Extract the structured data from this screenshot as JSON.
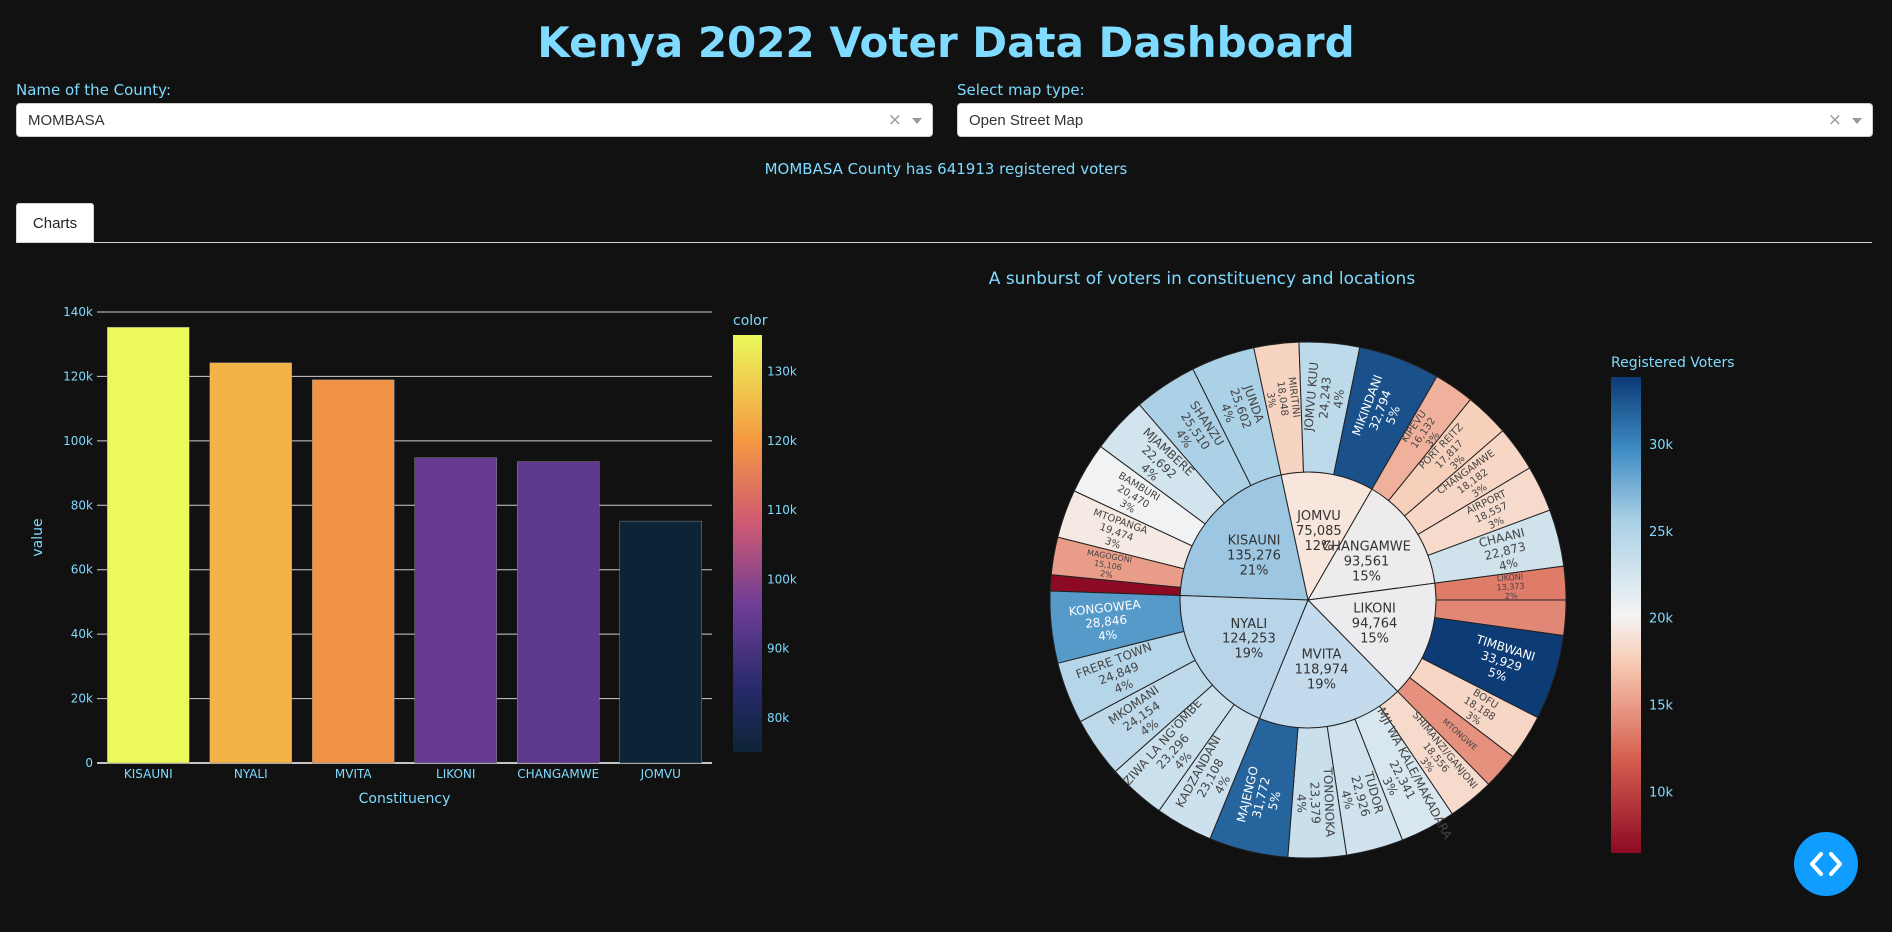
{
  "page": {
    "title": "Kenya 2022 Voter Data Dashboard"
  },
  "controls": {
    "county_label": "Name of the County:",
    "county_value": "MOMBASA",
    "map_label": "Select map type:",
    "map_value": "Open Street Map",
    "clear_glyph": "×"
  },
  "summary": "MOMBASA County has 641913 registered voters",
  "tabs": [
    {
      "label": "Charts"
    }
  ],
  "colors": {
    "accent": "#7fdbff",
    "background": "#111111",
    "fab": "#119dff"
  },
  "icons": {
    "fab": "code-icon"
  },
  "chart_data": [
    {
      "type": "bar",
      "xlabel": "Constituency",
      "ylabel": "value",
      "categories": [
        "KISAUNI",
        "NYALI",
        "MVITA",
        "LIKONI",
        "CHANGAMWE",
        "JOMVU"
      ],
      "values": [
        135276,
        124253,
        118974,
        94764,
        93561,
        75085
      ],
      "ylim": [
        0,
        140000
      ],
      "yticks": [
        "0",
        "20k",
        "40k",
        "60k",
        "80k",
        "100k",
        "120k",
        "140k"
      ],
      "colorbar": {
        "title": "color",
        "ticks": [
          "80k",
          "90k",
          "100k",
          "110k",
          "120k",
          "130k"
        ],
        "range": [
          75085,
          135276
        ]
      },
      "grid": true
    },
    {
      "type": "sunburst",
      "title": "A sunburst of voters in constituency and locations",
      "colorbar": {
        "title": "Registered Voters",
        "ticks": [
          "10k",
          "15k",
          "20k",
          "25k",
          "30k"
        ],
        "range": [
          6500,
          33929
        ]
      },
      "parents": [
        {
          "name": "KISAUNI",
          "value": "135,276",
          "pct": "21%"
        },
        {
          "name": "JOMVU",
          "value": "75,085",
          "pct": "12%"
        },
        {
          "name": "CHANGAMWE",
          "value": "93,561",
          "pct": "15%"
        },
        {
          "name": "LIKONI",
          "value": "94,764",
          "pct": "15%"
        },
        {
          "name": "MVITA",
          "value": "118,974",
          "pct": "19%"
        },
        {
          "name": "NYALI",
          "value": "124,253",
          "pct": "19%"
        }
      ],
      "children": [
        {
          "parent": "KISAUNI",
          "name": "",
          "value": "",
          "pct": "",
          "v": 6500
        },
        {
          "parent": "KISAUNI",
          "name": "MAGOGONI",
          "value": "15,106",
          "pct": "2%",
          "v": 15106
        },
        {
          "parent": "KISAUNI",
          "name": "MTOPANGA",
          "value": "19,474",
          "pct": "3%",
          "v": 19474
        },
        {
          "parent": "KISAUNI",
          "name": "BAMBURI",
          "value": "20,470",
          "pct": "3%",
          "v": 20470
        },
        {
          "parent": "KISAUNI",
          "name": "MJAMBERE",
          "value": "22,692",
          "pct": "4%",
          "v": 22692
        },
        {
          "parent": "KISAUNI",
          "name": "SHANZU",
          "value": "25,510",
          "pct": "4%",
          "v": 25510
        },
        {
          "parent": "KISAUNI",
          "name": "JUNDA",
          "value": "25,602",
          "pct": "4%",
          "v": 25602
        },
        {
          "parent": "JOMVU",
          "name": "MIRITINI",
          "value": "18,048",
          "pct": "3%",
          "v": 18048
        },
        {
          "parent": "JOMVU",
          "name": "JOMVU KUU",
          "value": "24,243",
          "pct": "4%",
          "v": 24243
        },
        {
          "parent": "JOMVU",
          "name": "MIKINDANI",
          "value": "32,794",
          "pct": "5%",
          "v": 32794
        },
        {
          "parent": "CHANGAMWE",
          "name": "KIPEVU",
          "value": "16,132",
          "pct": "3%",
          "v": 16132
        },
        {
          "parent": "CHANGAMWE",
          "name": "PORT REITZ",
          "value": "17,817",
          "pct": "3%",
          "v": 17817
        },
        {
          "parent": "CHANGAMWE",
          "name": "CHANGAMWE",
          "value": "18,182",
          "pct": "3%",
          "v": 18182
        },
        {
          "parent": "CHANGAMWE",
          "name": "AIRPORT",
          "value": "18,557",
          "pct": "3%",
          "v": 18557
        },
        {
          "parent": "CHANGAMWE",
          "name": "CHAANI",
          "value": "22,873",
          "pct": "4%",
          "v": 22873
        },
        {
          "parent": "LIKONI",
          "name": "LIKONI",
          "value": "13,373",
          "pct": "2%",
          "v": 13373
        },
        {
          "parent": "LIKONI",
          "name": "",
          "value": "",
          "pct": "",
          "v": 14000
        },
        {
          "parent": "LIKONI",
          "name": "TIMBWANI",
          "value": "33,929",
          "pct": "5%",
          "v": 33929
        },
        {
          "parent": "LIKONI",
          "name": "BOFU",
          "value": "18,188",
          "pct": "3%",
          "v": 18188
        },
        {
          "parent": "LIKONI",
          "name": "MTONGWE",
          "value": "",
          "pct": "",
          "v": 14500
        },
        {
          "parent": "MVITA",
          "name": "SHIMANZI/GANJONI",
          "value": "18,556",
          "pct": "3%",
          "v": 18556
        },
        {
          "parent": "MVITA",
          "name": "MJI WA KALE/MAKADARA",
          "value": "22,341",
          "pct": "3%",
          "v": 22341
        },
        {
          "parent": "MVITA",
          "name": "TUDOR",
          "value": "22,926",
          "pct": "4%",
          "v": 22926
        },
        {
          "parent": "MVITA",
          "name": "TONONOKA",
          "value": "23,379",
          "pct": "4%",
          "v": 23379
        },
        {
          "parent": "MVITA",
          "name": "MAJENGO",
          "value": "31,772",
          "pct": "5%",
          "v": 31772
        },
        {
          "parent": "NYALI",
          "name": "KADZANDANI",
          "value": "23,108",
          "pct": "4%",
          "v": 23108
        },
        {
          "parent": "NYALI",
          "name": "ZIWA LA NG'OMBE",
          "value": "23,296",
          "pct": "4%",
          "v": 23296
        },
        {
          "parent": "NYALI",
          "name": "MKOMANI",
          "value": "24,154",
          "pct": "4%",
          "v": 24154
        },
        {
          "parent": "NYALI",
          "name": "FRERE TOWN",
          "value": "24,849",
          "pct": "4%",
          "v": 24849
        },
        {
          "parent": "NYALI",
          "name": "KONGOWEA",
          "value": "28,846",
          "pct": "4%",
          "v": 28846
        }
      ]
    }
  ]
}
